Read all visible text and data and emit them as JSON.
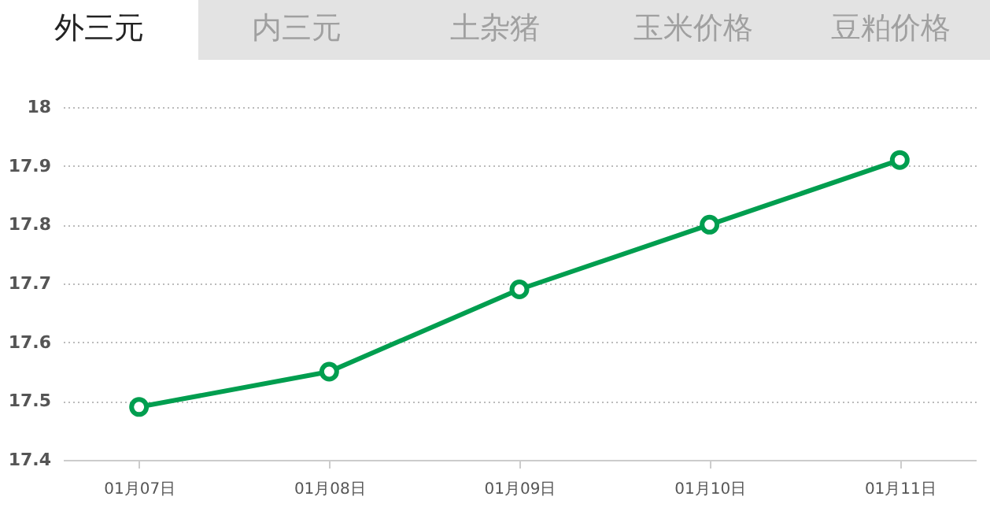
{
  "chart_data": {
    "type": "line",
    "annotations": [
      "外三元",
      "内三元",
      "土杂猪",
      "玉米价格",
      "豆粕价格"
    ],
    "categories": [
      "01月07日",
      "01月08日",
      "01月09日",
      "01月10日",
      "01月11日"
    ],
    "series": [
      {
        "color": "#009e4f",
        "values": [
          17.49,
          17.55,
          17.69,
          17.8,
          17.91
        ]
      }
    ],
    "ylim": [
      17.4,
      18
    ],
    "yticks": [
      17.4,
      17.5,
      17.6,
      17.7,
      17.8,
      17.9,
      18
    ],
    "grid": "y",
    "marker": "circle",
    "line_style": "solid"
  }
}
